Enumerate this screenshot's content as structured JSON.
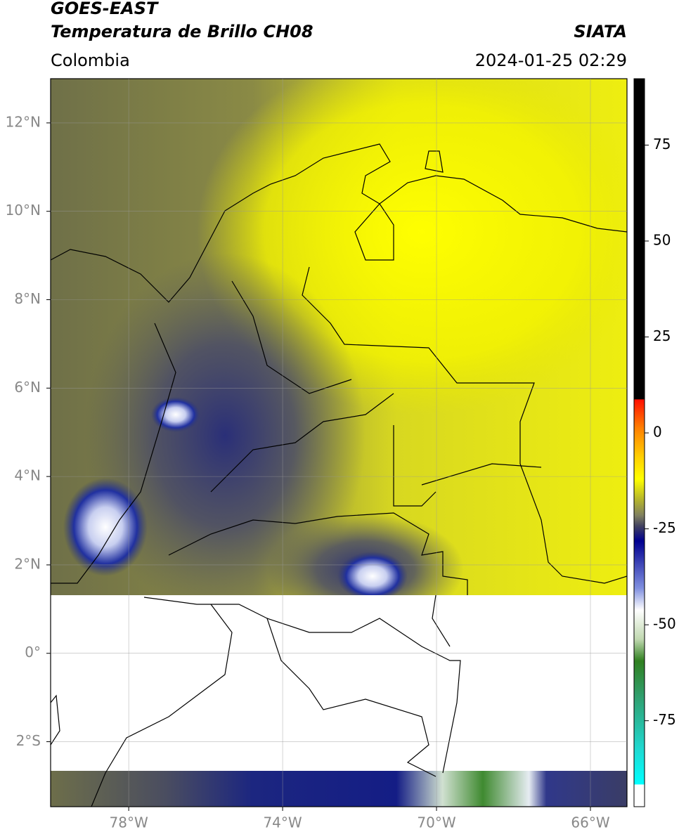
{
  "header": {
    "title": "GOES-EAST",
    "subtitle": "Temperatura de Brillo CH08",
    "source": "SIATA",
    "region": "Colombia",
    "datetime": "2024-01-25 02:29"
  },
  "map": {
    "xlim": [
      -80.03,
      -65.05
    ],
    "ylim": [
      -3.47,
      13.0
    ],
    "xticks": [
      {
        "value": -78,
        "label": "78°W"
      },
      {
        "value": -74,
        "label": "74°W"
      },
      {
        "value": -70,
        "label": "70°W"
      },
      {
        "value": -66,
        "label": "66°W"
      }
    ],
    "yticks": [
      {
        "value": 12,
        "label": "12°N"
      },
      {
        "value": 10,
        "label": "10°N"
      },
      {
        "value": 8,
        "label": "8°N"
      },
      {
        "value": 6,
        "label": "6°N"
      },
      {
        "value": 4,
        "label": "4°N"
      },
      {
        "value": 2,
        "label": "2°N"
      },
      {
        "value": 0,
        "label": "0°"
      },
      {
        "value": -2,
        "label": "2°S"
      }
    ],
    "grid": true
  },
  "colorbar": {
    "lim": [
      -97.4,
      92.3
    ],
    "ticks": [
      75,
      50,
      25,
      0,
      -25,
      -50,
      -75
    ]
  }
}
